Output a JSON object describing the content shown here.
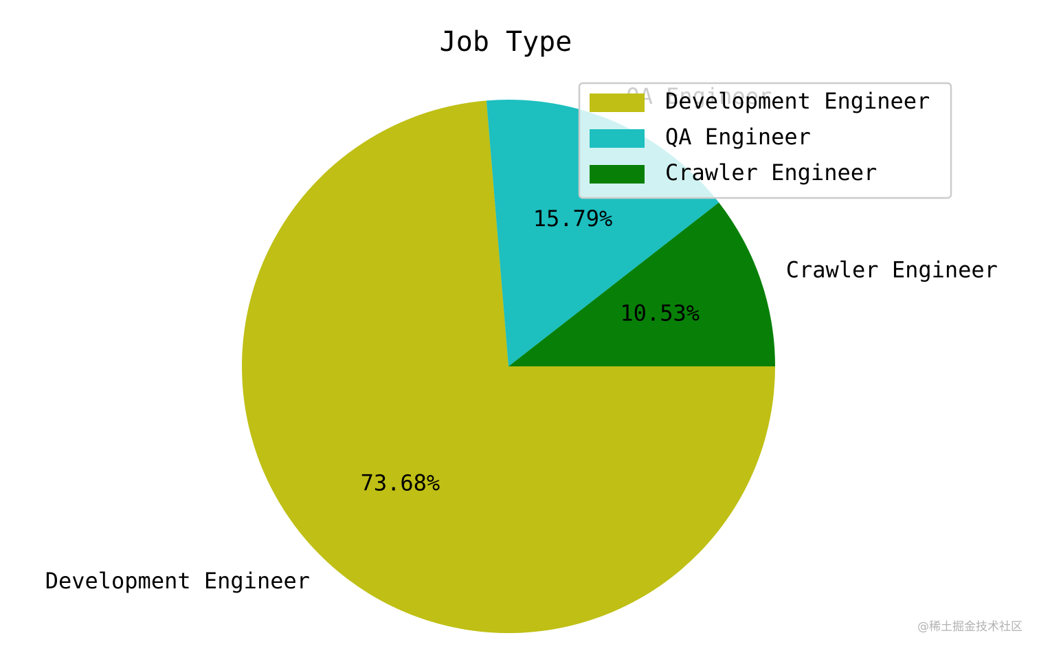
{
  "chart_data": {
    "type": "pie",
    "title": "Job Type",
    "categories": [
      "Development Engineer",
      "QA Engineer",
      "Crawler Engineer"
    ],
    "values": [
      73.68,
      15.79,
      10.53
    ],
    "value_labels": [
      "73.68%",
      "15.79%",
      "10.53%"
    ],
    "colors": [
      "#bfbf15",
      "#1dbfbf",
      "#088008"
    ],
    "start_angle_deg": 0,
    "direction": "clockwise",
    "legend": {
      "position": "upper-right",
      "entries": [
        "Development Engineer",
        "QA Engineer",
        "Crawler Engineer"
      ]
    }
  },
  "watermark": "@稀土掘金技术社区"
}
